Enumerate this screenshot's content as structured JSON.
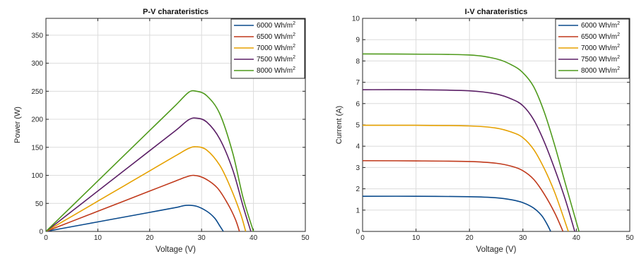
{
  "chart_data": [
    {
      "type": "line",
      "title": "P-V charateristics",
      "xlabel": "Voltage (V)",
      "ylabel": "Power (W)",
      "xlim": [
        0,
        50
      ],
      "ylim": [
        0,
        380
      ],
      "xticks": [
        0,
        10,
        20,
        30,
        40,
        50
      ],
      "yticks": [
        0,
        50,
        100,
        150,
        200,
        250,
        300,
        350
      ],
      "grid": true,
      "legend_position": "top-right",
      "series": [
        {
          "name": "6000 Wh/m",
          "color": "#0a4a8c",
          "x": [
            0,
            5,
            10,
            15,
            20,
            25,
            27,
            29,
            31,
            32.5,
            33.5,
            34.2
          ],
          "y": [
            0,
            8.5,
            17,
            25.5,
            34,
            42.5,
            46.5,
            45,
            36,
            24,
            10,
            0
          ]
        },
        {
          "name": "6500 Wh/m",
          "color": "#c0391b",
          "x": [
            0,
            5,
            10,
            15,
            20,
            25,
            27,
            28.5,
            30.5,
            33,
            35,
            36.5,
            37.3
          ],
          "y": [
            0,
            18,
            36,
            54,
            72,
            90,
            97,
            100,
            95,
            78,
            50,
            22,
            0
          ]
        },
        {
          "name": "7000 Wh/m",
          "color": "#e6a100",
          "x": [
            0,
            5,
            10,
            15,
            20,
            25,
            27.5,
            29,
            31,
            33.5,
            35.5,
            37.5,
            38.5
          ],
          "y": [
            0,
            27,
            54,
            81,
            108,
            135,
            148,
            151,
            145,
            118,
            80,
            32,
            0
          ]
        },
        {
          "name": "7500 Wh/m",
          "color": "#5b1f66",
          "x": [
            0,
            5,
            10,
            15,
            20,
            25,
            27.5,
            29,
            31,
            33.5,
            36,
            38,
            39.5
          ],
          "y": [
            0,
            36,
            72,
            108,
            144,
            180,
            199,
            202,
            195,
            165,
            110,
            45,
            0
          ]
        },
        {
          "name": "8000 Wh/m",
          "color": "#4f9a1c",
          "x": [
            0,
            5,
            10,
            15,
            20,
            25,
            27.5,
            29,
            31,
            33.5,
            36,
            38,
            40
          ],
          "y": [
            0,
            45,
            90,
            135,
            180,
            225,
            248,
            250,
            242,
            210,
            140,
            60,
            0
          ]
        }
      ]
    },
    {
      "type": "line",
      "title": "I-V charateristics",
      "xlabel": "Voltage (V)",
      "ylabel": "Current (A)",
      "xlim": [
        0,
        50
      ],
      "ylim": [
        0,
        10
      ],
      "xticks": [
        0,
        10,
        20,
        30,
        40,
        50
      ],
      "yticks": [
        0,
        1,
        2,
        3,
        4,
        5,
        6,
        7,
        8,
        9,
        10
      ],
      "grid": true,
      "legend_position": "top-right",
      "series": [
        {
          "name": "6000 Wh/m",
          "color": "#0a4a8c",
          "x": [
            0,
            10,
            20,
            25,
            28,
            30,
            32,
            33.5,
            34.5,
            35.2
          ],
          "y": [
            1.65,
            1.65,
            1.63,
            1.58,
            1.48,
            1.35,
            1.1,
            0.75,
            0.35,
            0
          ]
        },
        {
          "name": "6500 Wh/m",
          "color": "#c0391b",
          "x": [
            0,
            10,
            20,
            25,
            28,
            30,
            32,
            34,
            36,
            37.5
          ],
          "y": [
            3.32,
            3.31,
            3.28,
            3.2,
            3.05,
            2.85,
            2.45,
            1.75,
            0.85,
            0
          ]
        },
        {
          "name": "7000 Wh/m",
          "color": "#e6a100",
          "x": [
            0,
            10,
            20,
            25,
            28,
            30,
            32,
            34,
            36,
            38.5
          ],
          "y": [
            4.98,
            4.98,
            4.95,
            4.85,
            4.65,
            4.4,
            3.85,
            2.95,
            1.8,
            0
          ]
        },
        {
          "name": "7500 Wh/m",
          "color": "#5b1f66",
          "x": [
            0,
            10,
            20,
            25,
            28,
            30,
            32,
            34,
            36,
            38,
            39.7
          ],
          "y": [
            6.65,
            6.65,
            6.6,
            6.45,
            6.2,
            5.9,
            5.25,
            4.2,
            2.9,
            1.45,
            0
          ]
        },
        {
          "name": "8000 Wh/m",
          "color": "#4f9a1c",
          "x": [
            0,
            10,
            20,
            25,
            28,
            30,
            32,
            34,
            36,
            38,
            40.5
          ],
          "y": [
            8.33,
            8.32,
            8.28,
            8.1,
            7.8,
            7.45,
            6.8,
            5.6,
            4.0,
            2.2,
            0
          ]
        }
      ]
    }
  ]
}
